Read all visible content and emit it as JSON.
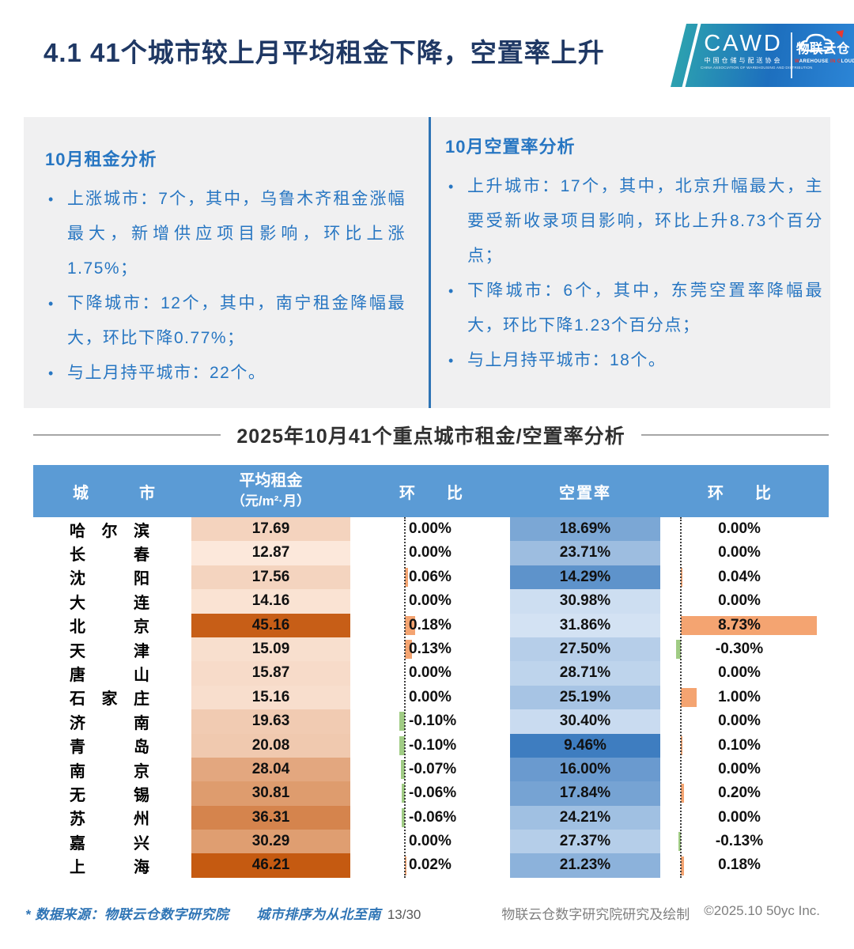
{
  "page": {
    "title": "4.1 41个城市较上月平均租金下降，空置率上升"
  },
  "logo": {
    "cawd": "CAWD",
    "cawd_cn": "中国仓储与配送协会",
    "cawd_en": "CHINA ASSOCIATION OF WAREHOUSING AND DISTRIBUTION",
    "brand": "物联云仓",
    "brand_en_parts": [
      {
        "t": "W",
        "red": true
      },
      {
        "t": "AREHOUSE",
        "red": false
      },
      {
        "t": " ",
        "red": false
      },
      {
        "t": "IN",
        "red": true
      },
      {
        "t": " ",
        "red": false
      },
      {
        "t": "C",
        "red": true
      },
      {
        "t": "LOUD",
        "red": false
      }
    ],
    "accent_red": "#E8382F"
  },
  "rent_analysis": {
    "title": "10月租金分析",
    "bullets": [
      "上涨城市：7个，其中，乌鲁木齐租金涨幅最大，新增供应项目影响，环比上涨1.75%；",
      "下降城市：12个，其中，南宁租金降幅最大，环比下降0.77%；",
      "与上月持平城市：22个。"
    ]
  },
  "vacancy_analysis": {
    "title": "10月空置率分析",
    "bullets": [
      "上升城市：17个，其中，北京升幅最大，主要受新收录项目影响，环比上升8.73个百分点；",
      "下降城市：6个，其中，东莞空置率降幅最大，环比下降1.23个百分点；",
      "与上月持平城市：18个。"
    ]
  },
  "table": {
    "title": "2025年10月41个重点城市租金/空置率分析",
    "headers": {
      "city": "城市",
      "rent": "平均租金",
      "rent_unit": "（元/m²·月）",
      "mom": "环比",
      "vacancy": "空置率"
    },
    "header_bg": "#5B9BD5",
    "scales": {
      "rent": {
        "min": 12.87,
        "max": 46.21,
        "light": "#FCE8DB",
        "dark": "#C55A11",
        "dark_at": "max"
      },
      "vacancy": {
        "min": 9.46,
        "max": 31.86,
        "light": "#D3E2F3",
        "dark": "#3E7DC0",
        "dark_at": "min"
      }
    },
    "bar_colors": {
      "positive": "#F4A471",
      "negative": "#A0CC84"
    },
    "rows": [
      {
        "city": "哈尔滨",
        "rent": 17.69,
        "rent_mom": 0.0,
        "vacancy": 18.69,
        "vacancy_mom": 0.0
      },
      {
        "city": "长春",
        "rent": 12.87,
        "rent_mom": 0.0,
        "vacancy": 23.71,
        "vacancy_mom": 0.0
      },
      {
        "city": "沈阳",
        "rent": 17.56,
        "rent_mom": 0.06,
        "vacancy": 14.29,
        "vacancy_mom": 0.04
      },
      {
        "city": "大连",
        "rent": 14.16,
        "rent_mom": 0.0,
        "vacancy": 30.98,
        "vacancy_mom": 0.0
      },
      {
        "city": "北京",
        "rent": 45.16,
        "rent_mom": 0.18,
        "vacancy": 31.86,
        "vacancy_mom": 8.73
      },
      {
        "city": "天津",
        "rent": 15.09,
        "rent_mom": 0.13,
        "vacancy": 27.5,
        "vacancy_mom": -0.3
      },
      {
        "city": "唐山",
        "rent": 15.87,
        "rent_mom": 0.0,
        "vacancy": 28.71,
        "vacancy_mom": 0.0
      },
      {
        "city": "石家庄",
        "rent": 15.16,
        "rent_mom": 0.0,
        "vacancy": 25.19,
        "vacancy_mom": 1.0
      },
      {
        "city": "济南",
        "rent": 19.63,
        "rent_mom": -0.1,
        "vacancy": 30.4,
        "vacancy_mom": 0.0
      },
      {
        "city": "青岛",
        "rent": 20.08,
        "rent_mom": -0.1,
        "vacancy": 9.46,
        "vacancy_mom": 0.1
      },
      {
        "city": "南京",
        "rent": 28.04,
        "rent_mom": -0.07,
        "vacancy": 16.0,
        "vacancy_mom": 0.0
      },
      {
        "city": "无锡",
        "rent": 30.81,
        "rent_mom": -0.06,
        "vacancy": 17.84,
        "vacancy_mom": 0.2
      },
      {
        "city": "苏州",
        "rent": 36.31,
        "rent_mom": -0.06,
        "vacancy": 24.21,
        "vacancy_mom": 0.0
      },
      {
        "city": "嘉兴",
        "rent": 30.29,
        "rent_mom": 0.0,
        "vacancy": 27.37,
        "vacancy_mom": -0.13
      },
      {
        "city": "上海",
        "rent": 46.21,
        "rent_mom": 0.02,
        "vacancy": 21.23,
        "vacancy_mom": 0.18
      }
    ]
  },
  "footer": {
    "note": "* 数据来源：物联云仓数字研究院　　城市排序为从北至南",
    "page_num": "13/30",
    "credit": "物联云仓数字研究院研究及绘制",
    "copyright": "©2025.10 50yc Inc."
  }
}
